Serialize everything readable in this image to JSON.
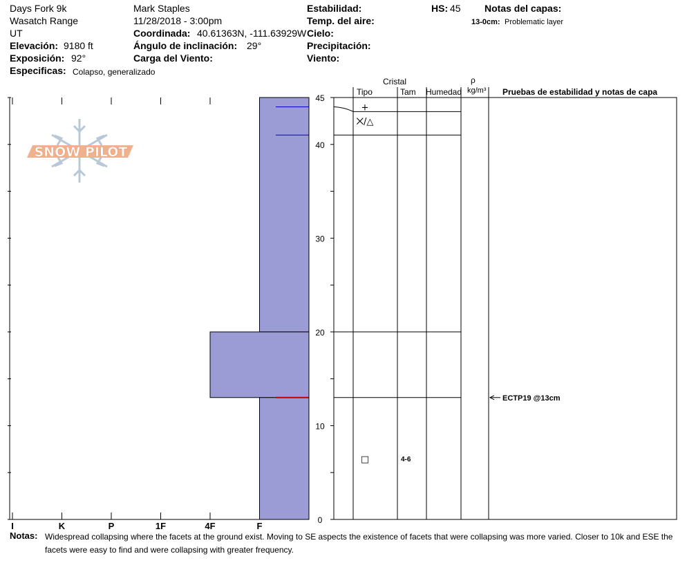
{
  "header": {
    "location": "Days Fork 9k",
    "range": "Wasatch Range",
    "state": "UT",
    "observer": "Mark Staples",
    "datetime": "11/28/2018 - 3:00pm",
    "elevation": {
      "label": "Elevación:",
      "value": "9180 ft"
    },
    "aspect": {
      "label": "Exposición:",
      "value": "92°"
    },
    "specifics": {
      "label": "Especificas:",
      "value": "Colapso, generalizado"
    },
    "coordinate": {
      "label": "Coordinada:",
      "value": "40.61363N, -111.63929W"
    },
    "slope": {
      "label": "Ángulo de inclinación:",
      "value": "29°"
    },
    "wind_loading": {
      "label": "Carga del Viento:",
      "value": ""
    },
    "stability": {
      "label": "Estabilidad:",
      "value": ""
    },
    "air_temp": {
      "label": "Temp. del aire:",
      "value": ""
    },
    "sky": {
      "label": "Cielo:",
      "value": ""
    },
    "precip": {
      "label": "Precipitación:",
      "value": ""
    },
    "wind": {
      "label": "Viento:",
      "value": ""
    },
    "hs": {
      "label": "HS:",
      "value": "45"
    },
    "layer_notes": {
      "label": "Notas del capas:",
      "range": "13-0cm:",
      "text": "Problematic layer"
    }
  },
  "logo": {
    "text": "SNOW PILOT"
  },
  "table_headers": {
    "crystal": "Cristal",
    "type": "Tipo",
    "size": "Tam",
    "moisture": "Humedad",
    "density_symbol": "ρ",
    "density_unit": "kg/m³",
    "tests": "Pruebas de estabilidad y notas de capa"
  },
  "notes": {
    "label": "Notas:",
    "text": "Widespread collapsing where the facets at the ground exist. Moving to SE aspects the existence of facets that were collapsing was more varied. Closer to 10k and ESE the facets were easy to find and were collapsing with greater frequency."
  },
  "chart_data": {
    "type": "bar",
    "title": "",
    "xlabel": "",
    "ylabel": "",
    "hardness_categories": [
      "I",
      "K",
      "P",
      "1F",
      "4F",
      "F"
    ],
    "hardness_index": {
      "F": 1,
      "4F": 2,
      "1F": 3,
      "P": 4,
      "K": 5,
      "I": 6
    },
    "ylim": [
      0,
      45
    ],
    "y_ticks": [
      0,
      10,
      20,
      30,
      40,
      45
    ],
    "total_height_cm": 45,
    "layers": [
      {
        "top": 45,
        "bottom": 20,
        "hardness": "F"
      },
      {
        "top": 20,
        "bottom": 13,
        "hardness": "4F"
      },
      {
        "top": 13,
        "bottom": 0,
        "hardness": "F"
      }
    ],
    "hardness_profile_lines": [
      44,
      41
    ],
    "weak_layer_cm": 13,
    "crystal_table": {
      "boundaries": [
        45,
        43.5,
        41,
        20,
        13
      ],
      "entries": [
        {
          "depth": 44,
          "form_symbol": "+",
          "size": ""
        },
        {
          "depth": 42.5,
          "form_symbol": "⨉/△",
          "size": ""
        },
        {
          "depth": 6.5,
          "form_symbol": "□",
          "size": "4-6"
        }
      ]
    },
    "stability_tests": [
      {
        "depth": 13,
        "text": "ECTP19 @13cm"
      }
    ],
    "colors": {
      "layer_fill": "#9b9bd6",
      "layer_line": "#0000c8",
      "weak_layer_line": "#c00000",
      "logo_orange": "#f0b18e",
      "logo_blue": "#b8c8d8"
    }
  }
}
